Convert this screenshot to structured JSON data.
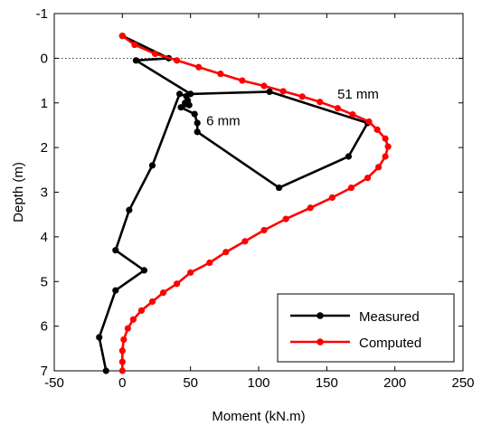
{
  "chart_data": {
    "type": "line",
    "xlabel": "Moment (kN.m)",
    "ylabel": "Depth (m)",
    "xlim": [
      -50,
      250
    ],
    "ylim": [
      7,
      -1
    ],
    "y_axis_inverted": true,
    "xticks": [
      -50,
      0,
      50,
      100,
      150,
      200,
      250
    ],
    "yticks": [
      -1,
      0,
      1,
      2,
      3,
      4,
      5,
      6,
      7
    ],
    "grid": false,
    "reference_line": {
      "y": 0,
      "style": "dotted"
    },
    "legend_position": "bottom-right",
    "annotations": [
      {
        "text": "51 mm",
        "x": 173,
        "y": 0.8
      },
      {
        "text": "6 mm",
        "x": 74,
        "y": 1.4
      }
    ],
    "series": [
      {
        "name": "Measured",
        "color": "#000000",
        "points": [
          [
            0,
            -0.5
          ],
          [
            34,
            0.0
          ],
          [
            10,
            0.05
          ],
          [
            50,
            0.8
          ],
          [
            108,
            0.75
          ],
          [
            180,
            1.45
          ],
          [
            166,
            2.2
          ],
          [
            115,
            2.9
          ],
          [
            55,
            1.65
          ],
          [
            55,
            1.45
          ],
          [
            53,
            1.25
          ],
          [
            43,
            1.1
          ],
          [
            49,
            1.05
          ],
          [
            46,
            1.0
          ],
          [
            48,
            0.95
          ],
          [
            47,
            0.85
          ],
          [
            42,
            0.8
          ],
          [
            22,
            2.4
          ],
          [
            5,
            3.4
          ],
          [
            -5,
            4.3
          ],
          [
            16,
            4.75
          ],
          [
            -5,
            5.2
          ],
          [
            -17,
            6.25
          ],
          [
            -12,
            7.0
          ]
        ]
      },
      {
        "name": "Computed",
        "color": "#ff0000",
        "points": [
          [
            0,
            -0.5
          ],
          [
            9,
            -0.3
          ],
          [
            24,
            -0.1
          ],
          [
            40,
            0.05
          ],
          [
            56,
            0.2
          ],
          [
            72,
            0.35
          ],
          [
            88,
            0.5
          ],
          [
            104,
            0.62
          ],
          [
            118,
            0.74
          ],
          [
            132,
            0.86
          ],
          [
            145,
            0.98
          ],
          [
            158,
            1.12
          ],
          [
            169,
            1.26
          ],
          [
            181,
            1.42
          ],
          [
            187,
            1.6
          ],
          [
            193,
            1.8
          ],
          [
            195,
            1.98
          ],
          [
            193,
            2.2
          ],
          [
            188,
            2.44
          ],
          [
            180,
            2.68
          ],
          [
            168,
            2.9
          ],
          [
            154,
            3.12
          ],
          [
            138,
            3.35
          ],
          [
            120,
            3.6
          ],
          [
            104,
            3.85
          ],
          [
            90,
            4.1
          ],
          [
            76,
            4.34
          ],
          [
            64,
            4.58
          ],
          [
            50,
            4.8
          ],
          [
            40,
            5.05
          ],
          [
            30,
            5.25
          ],
          [
            22,
            5.45
          ],
          [
            14,
            5.65
          ],
          [
            8,
            5.85
          ],
          [
            4,
            6.05
          ],
          [
            1,
            6.3
          ],
          [
            0,
            6.55
          ],
          [
            0,
            6.8
          ],
          [
            0,
            7.0
          ]
        ]
      }
    ]
  },
  "computed_extra": {
    "tail": [
      [
        35,
        2.2
      ],
      [
        25,
        2.5
      ],
      [
        15,
        2.8
      ],
      [
        10,
        3.1
      ],
      [
        6,
        3.4
      ],
      [
        3,
        3.7
      ],
      [
        0,
        4.0
      ],
      [
        -2,
        4.3
      ],
      [
        -3,
        4.6
      ],
      [
        -3,
        4.9
      ],
      [
        -3,
        5.2
      ],
      [
        -2,
        5.5
      ],
      [
        -1,
        5.8
      ],
      [
        -1,
        6.1
      ],
      [
        0,
        6.4
      ],
      [
        0,
        6.7
      ]
    ]
  }
}
